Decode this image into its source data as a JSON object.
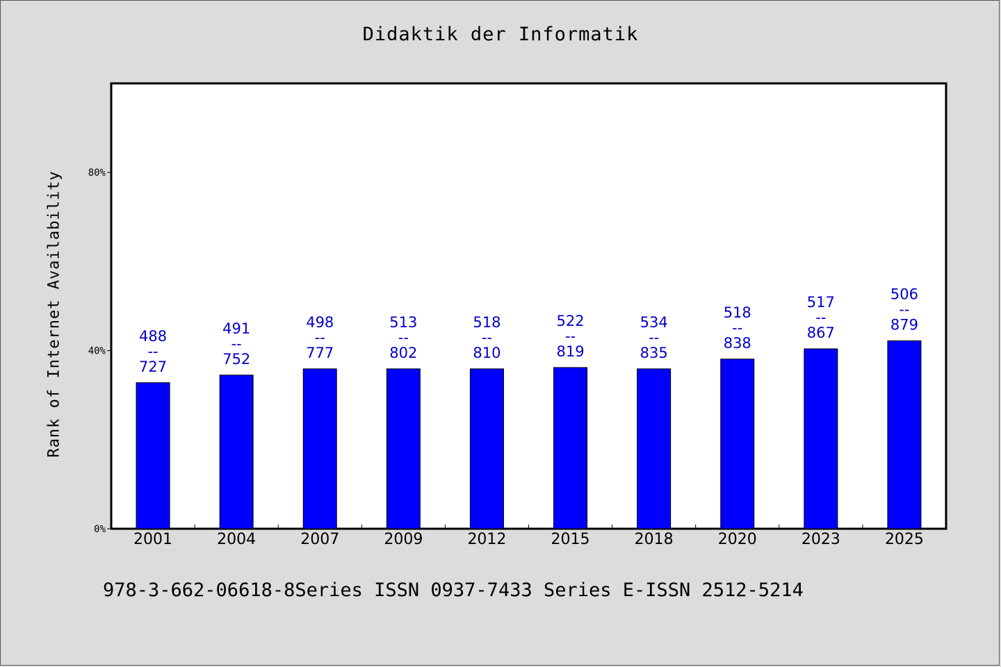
{
  "chart_data": {
    "type": "bar",
    "title": "Didaktik der Informatik",
    "xlabel": "",
    "ylabel": "Rank of Internet Availability",
    "categories": [
      "2001",
      "2004",
      "2007",
      "2009",
      "2012",
      "2015",
      "2018",
      "2020",
      "2023",
      "2025"
    ],
    "values": [
      32.8,
      34.5,
      35.9,
      35.9,
      35.9,
      36.2,
      35.9,
      38.1,
      40.4,
      42.2
    ],
    "value_labels": [
      [
        "488",
        "--",
        "727"
      ],
      [
        "491",
        "--",
        "752"
      ],
      [
        "498",
        "--",
        "777"
      ],
      [
        "513",
        "--",
        "802"
      ],
      [
        "518",
        "--",
        "810"
      ],
      [
        "522",
        "--",
        "819"
      ],
      [
        "534",
        "--",
        "835"
      ],
      [
        "518",
        "--",
        "838"
      ],
      [
        "517",
        "--",
        "867"
      ],
      [
        "506",
        "--",
        "879"
      ]
    ],
    "y_ticks": [
      0,
      40,
      80
    ],
    "y_tick_labels": [
      "0%",
      "40%",
      "80%"
    ],
    "ylim": [
      0,
      100
    ],
    "grid": false,
    "bar_color": "#0000ff",
    "label_color": "#0000cc"
  },
  "footer": {
    "text": "978-3-662-06618-8Series ISSN 0937-7433 Series E-ISSN 2512-5214"
  }
}
